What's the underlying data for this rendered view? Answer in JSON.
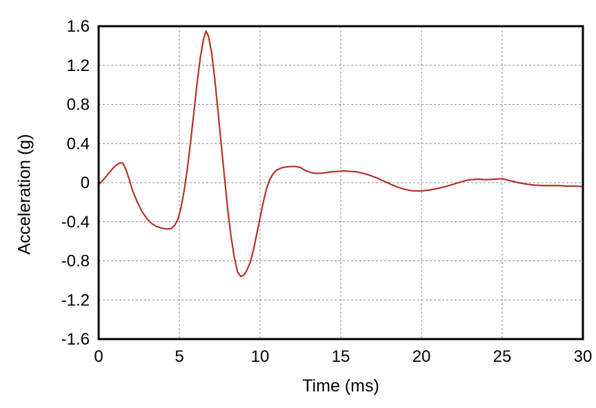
{
  "figure": {
    "background": "#ffffff"
  },
  "chart_data": {
    "type": "line",
    "title": "",
    "xlabel": "Time (ms)",
    "ylabel": "Acceleration (g)",
    "xlim": [
      0,
      30
    ],
    "ylim": [
      -1.6,
      1.6
    ],
    "xticks": [
      0,
      5,
      10,
      15,
      20,
      25,
      30
    ],
    "xtick_labels": [
      "0",
      "5",
      "10",
      "15",
      "20",
      "25",
      "30"
    ],
    "yticks": [
      -1.6,
      -1.2,
      -0.8,
      -0.4,
      0,
      0.4,
      0.8,
      1.2,
      1.6
    ],
    "ytick_labels": [
      "-1.6",
      "-1.2",
      "-0.8",
      "-0.4",
      "0",
      "0.4",
      "0.8",
      "1.2",
      "1.6"
    ],
    "grid": true,
    "grid_style": "dashed",
    "legend_position": "none",
    "colors": {
      "line": "#b23227",
      "grid": "#898989",
      "frame": "#000000",
      "text": "#000000"
    },
    "series": [
      {
        "name": "acceleration",
        "x": [
          0,
          0.3,
          0.6,
          0.9,
          1.1,
          1.3,
          1.5,
          1.7,
          1.9,
          2.1,
          2.4,
          2.7,
          3.0,
          3.3,
          3.6,
          3.9,
          4.2,
          4.5,
          4.7,
          4.9,
          5.1,
          5.3,
          5.5,
          5.7,
          5.9,
          6.1,
          6.3,
          6.5,
          6.65,
          6.8,
          7.0,
          7.2,
          7.4,
          7.6,
          7.8,
          8.0,
          8.2,
          8.4,
          8.6,
          8.8,
          9.0,
          9.2,
          9.4,
          9.6,
          9.8,
          10.0,
          10.2,
          10.4,
          10.6,
          10.8,
          11.0,
          11.3,
          11.6,
          11.9,
          12.2,
          12.5,
          12.8,
          13.1,
          13.4,
          13.7,
          14.0,
          14.4,
          14.8,
          15.2,
          15.6,
          16.0,
          16.4,
          16.8,
          17.2,
          17.6,
          18.0,
          18.5,
          19.0,
          19.5,
          20.0,
          20.5,
          21.0,
          21.5,
          22.0,
          22.5,
          23.0,
          23.5,
          24.0,
          24.5,
          25.0,
          25.5,
          26.0,
          26.5,
          27.0,
          27.5,
          28.0,
          28.5,
          29.0,
          29.5,
          30.0
        ],
        "y": [
          -0.02,
          0.03,
          0.09,
          0.15,
          0.18,
          0.2,
          0.2,
          0.13,
          0.03,
          -0.08,
          -0.2,
          -0.3,
          -0.37,
          -0.42,
          -0.45,
          -0.465,
          -0.475,
          -0.47,
          -0.44,
          -0.38,
          -0.26,
          -0.08,
          0.15,
          0.42,
          0.72,
          1.02,
          1.28,
          1.47,
          1.55,
          1.5,
          1.33,
          1.05,
          0.72,
          0.38,
          0.05,
          -0.28,
          -0.55,
          -0.76,
          -0.91,
          -0.96,
          -0.945,
          -0.89,
          -0.81,
          -0.68,
          -0.52,
          -0.36,
          -0.2,
          -0.06,
          0.03,
          0.09,
          0.125,
          0.15,
          0.16,
          0.165,
          0.165,
          0.155,
          0.125,
          0.105,
          0.095,
          0.095,
          0.1,
          0.11,
          0.115,
          0.12,
          0.115,
          0.11,
          0.095,
          0.075,
          0.05,
          0.02,
          -0.01,
          -0.045,
          -0.07,
          -0.085,
          -0.085,
          -0.075,
          -0.06,
          -0.04,
          -0.015,
          0.01,
          0.03,
          0.035,
          0.03,
          0.035,
          0.04,
          0.02,
          0.0,
          -0.015,
          -0.025,
          -0.03,
          -0.03,
          -0.03,
          -0.035,
          -0.035,
          -0.04
        ]
      }
    ]
  }
}
